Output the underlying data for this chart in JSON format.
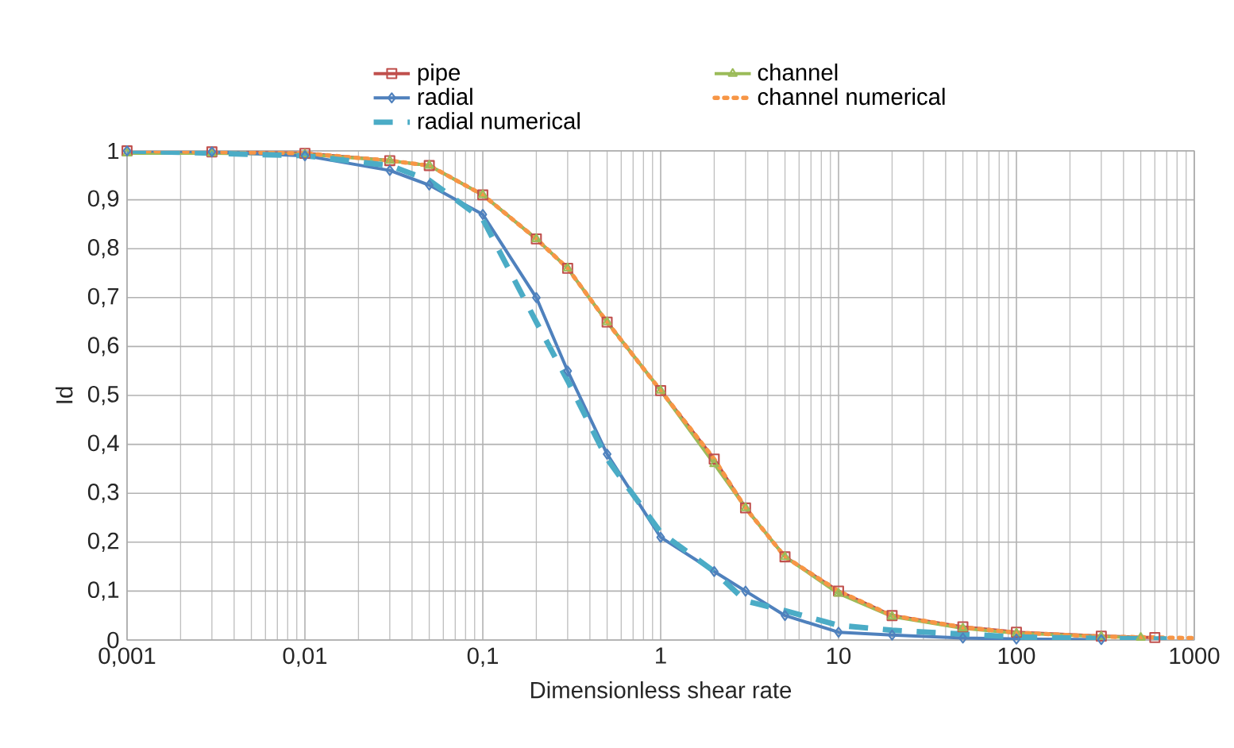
{
  "chart_data": {
    "type": "line",
    "xlabel": "Dimensionless shear rate",
    "ylabel": "Id",
    "log": "x",
    "grid": true,
    "legend": "top",
    "xlim": [
      0.001,
      1000
    ],
    "ylim": [
      0,
      1
    ],
    "xticks": [
      {
        "value": 0.001,
        "label": "0,001"
      },
      {
        "value": 0.01,
        "label": "0,01"
      },
      {
        "value": 0.1,
        "label": "0,1"
      },
      1,
      10,
      100,
      1000
    ],
    "yticks": [
      0,
      {
        "value": 0.1,
        "label": "0,1"
      },
      {
        "value": 0.2,
        "label": "0,2"
      },
      {
        "value": 0.3,
        "label": "0,3"
      },
      {
        "value": 0.4,
        "label": "0,4"
      },
      {
        "value": 0.5,
        "label": "0,5"
      },
      {
        "value": 0.6,
        "label": "0,6"
      },
      {
        "value": 0.7,
        "label": "0,7"
      },
      {
        "value": 0.8,
        "label": "0,8"
      },
      {
        "value": 0.9,
        "label": "0,9"
      },
      1
    ],
    "series": [
      {
        "name": "pipe",
        "color": "#c0504d",
        "marker": "square",
        "line_style": "solid",
        "x": [
          0.001,
          0.003,
          0.01,
          0.03,
          0.05,
          0.1,
          0.2,
          0.3,
          0.5,
          1,
          2,
          3,
          5,
          10,
          20,
          50,
          100,
          300,
          600
        ],
        "values": [
          1,
          0.998,
          0.995,
          0.98,
          0.97,
          0.91,
          0.82,
          0.76,
          0.65,
          0.51,
          0.37,
          0.27,
          0.17,
          0.1,
          0.05,
          0.027,
          0.016,
          0.008,
          0.005
        ]
      },
      {
        "name": "channel",
        "color": "#9bbb59",
        "marker": "triangle",
        "line_style": "solid",
        "x": [
          0.001,
          0.003,
          0.01,
          0.03,
          0.05,
          0.1,
          0.2,
          0.3,
          0.5,
          1,
          2,
          3,
          5,
          10,
          20,
          50,
          100,
          300,
          500
        ],
        "values": [
          0.995,
          0.995,
          0.993,
          0.98,
          0.97,
          0.91,
          0.82,
          0.76,
          0.65,
          0.51,
          0.36,
          0.27,
          0.17,
          0.095,
          0.048,
          0.024,
          0.014,
          0.007,
          0.005
        ]
      },
      {
        "name": "radial",
        "color": "#4f81bd",
        "marker": "diamond",
        "line_style": "solid",
        "x": [
          0.001,
          0.003,
          0.01,
          0.03,
          0.05,
          0.1,
          0.2,
          0.3,
          0.5,
          1,
          2,
          3,
          5,
          10,
          20,
          50,
          100,
          300
        ],
        "values": [
          1,
          0.998,
          0.99,
          0.96,
          0.93,
          0.87,
          0.7,
          0.55,
          0.38,
          0.21,
          0.14,
          0.1,
          0.05,
          0.016,
          0.01,
          0.004,
          0.002,
          0.001
        ]
      },
      {
        "name": "channel numerical",
        "color": "#f79646",
        "marker": "none",
        "line_style": "dotted",
        "x": [
          0.001,
          0.01,
          0.03,
          0.05,
          0.1,
          0.2,
          0.3,
          0.5,
          1,
          2,
          3,
          5,
          10,
          20,
          50,
          100,
          300,
          1000
        ],
        "values": [
          1,
          0.995,
          0.98,
          0.97,
          0.91,
          0.82,
          0.76,
          0.65,
          0.51,
          0.37,
          0.27,
          0.17,
          0.1,
          0.05,
          0.026,
          0.015,
          0.007,
          0.004
        ]
      },
      {
        "name": "radial numerical",
        "color": "#4bacc6",
        "marker": "none",
        "line_style": "dashed",
        "x": [
          0.001,
          0.01,
          0.03,
          0.05,
          0.1,
          0.2,
          0.3,
          0.5,
          1,
          2,
          3,
          5,
          10,
          20,
          100,
          300,
          700
        ],
        "values": [
          1,
          0.99,
          0.97,
          0.94,
          0.86,
          0.65,
          0.53,
          0.37,
          0.22,
          0.14,
          0.08,
          0.06,
          0.03,
          0.02,
          0.006,
          0.003,
          0.002
        ]
      }
    ]
  }
}
